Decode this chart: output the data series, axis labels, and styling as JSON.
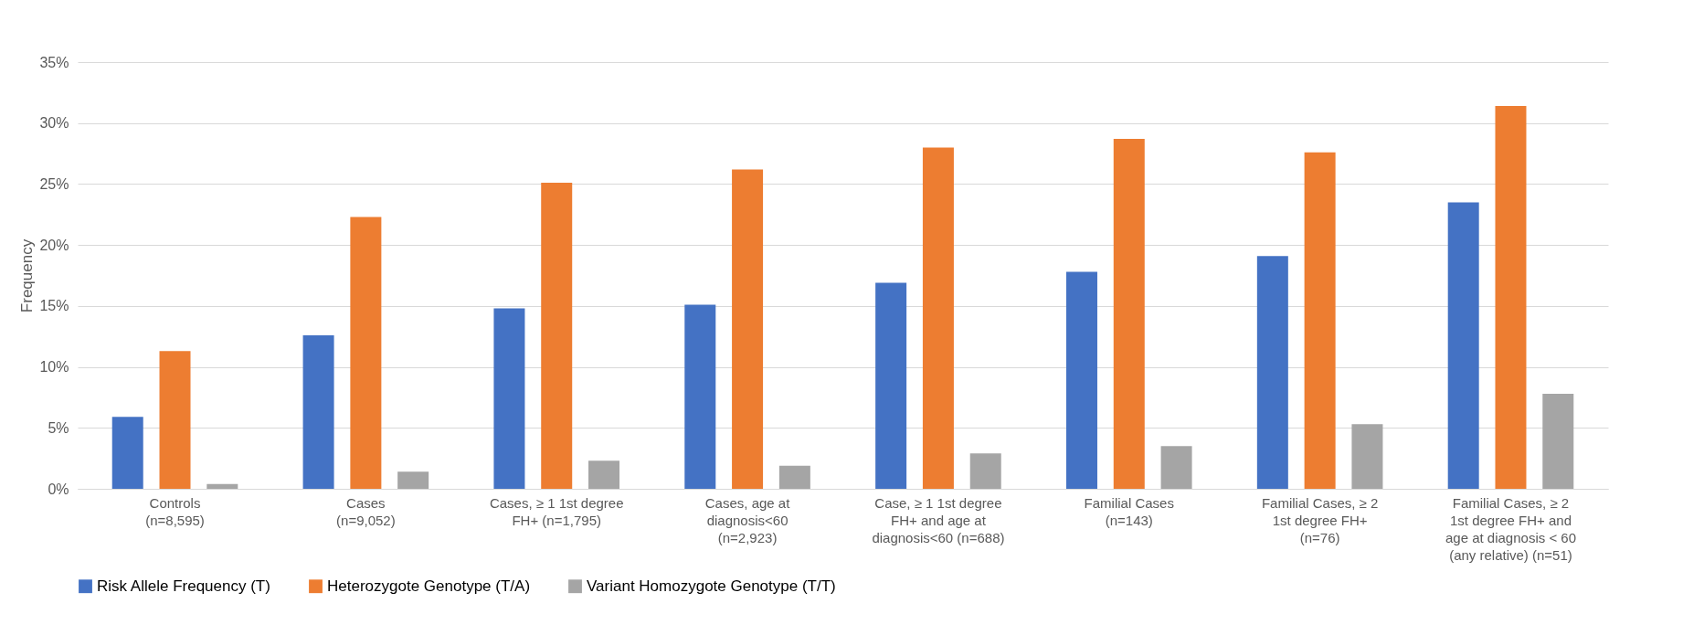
{
  "chart_data": {
    "type": "bar",
    "ylabel": "Frequency",
    "categories": [
      "Controls\n(n=8,595)",
      "Cases\n(n=9,052)",
      "Cases, ≥ 1 1st degree\nFH+ (n=1,795)",
      "Cases, age at\ndiagnosis<60\n(n=2,923)",
      "Case, ≥ 1 1st degree\nFH+ and age at\ndiagnosis<60 (n=688)",
      "Familial Cases\n(n=143)",
      "Familial Cases, ≥ 2\n1st degree FH+\n(n=76)",
      "Familial Cases, ≥ 2\n1st degree FH+ and\nage at diagnosis < 60\n(any relative) (n=51)"
    ],
    "series": [
      {
        "name": "Risk Allele Frequency (T)",
        "color": "#4472c4",
        "values": [
          5.9,
          12.6,
          14.8,
          15.1,
          16.9,
          17.8,
          19.1,
          23.5
        ]
      },
      {
        "name": "Heterozygote Genotype (T/A)",
        "color": "#ed7d31",
        "values": [
          11.3,
          22.3,
          25.1,
          26.2,
          28.0,
          28.7,
          27.6,
          31.4
        ]
      },
      {
        "name": "Variant Homozygote Genotype (T/T)",
        "color": "#a5a5a5",
        "values": [
          0.4,
          1.4,
          2.3,
          1.9,
          2.9,
          3.5,
          5.3,
          7.8
        ]
      }
    ],
    "ylim": [
      0,
      35
    ],
    "yticks": [
      {
        "value": 0,
        "label": "0%"
      },
      {
        "value": 5,
        "label": "5%"
      },
      {
        "value": 10,
        "label": "10%"
      },
      {
        "value": 15,
        "label": "15%"
      },
      {
        "value": 20,
        "label": "20%"
      },
      {
        "value": 25,
        "label": "25%"
      },
      {
        "value": 30,
        "label": "30%"
      },
      {
        "value": 35,
        "label": "35%"
      }
    ],
    "grid": "y",
    "legend": "bottom"
  }
}
